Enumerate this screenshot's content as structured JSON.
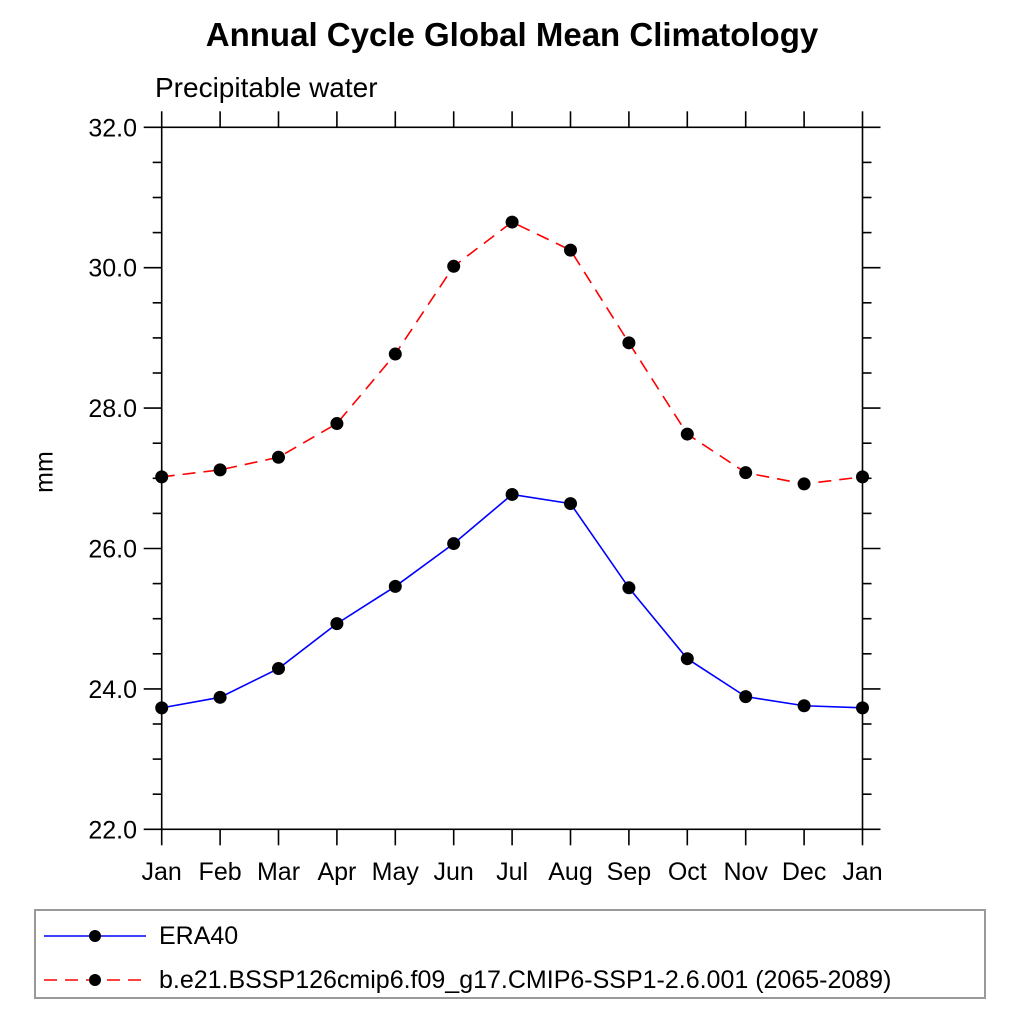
{
  "chart_data": {
    "type": "line",
    "title": "Annual Cycle Global Mean Climatology",
    "left_subtitle": "Precipitable water",
    "ylabel": "mm",
    "xlabel": "",
    "categories": [
      "Jan",
      "Feb",
      "Mar",
      "Apr",
      "May",
      "Jun",
      "Jul",
      "Aug",
      "Sep",
      "Oct",
      "Nov",
      "Dec",
      "Jan"
    ],
    "ylim": [
      22.0,
      32.0
    ],
    "y_major_ticks": [
      22.0,
      24.0,
      26.0,
      28.0,
      30.0,
      32.0
    ],
    "y_tick_labels": [
      "22.0",
      "24.0",
      "26.0",
      "28.0",
      "30.0",
      "32.0"
    ],
    "y_minor_step": 0.5,
    "grid": false,
    "legend_position": "bottom-left box",
    "frame_color": "#000000",
    "marker": "filled-circle",
    "marker_color": "#000000",
    "series": [
      {
        "name": "ERA40",
        "color": "#0000ff",
        "style": "solid",
        "values": [
          23.73,
          23.88,
          24.29,
          24.93,
          25.46,
          26.07,
          26.77,
          26.64,
          25.44,
          24.43,
          23.89,
          23.76,
          23.73
        ]
      },
      {
        "name": "b.e21.BSSP126cmip6.f09_g17.CMIP6-SSP1-2.6.001 (2065-2089)",
        "color": "#ff0000",
        "style": "dashed",
        "values": [
          27.02,
          27.12,
          27.3,
          27.78,
          28.77,
          30.02,
          30.65,
          30.25,
          28.93,
          27.63,
          27.08,
          26.92,
          27.02
        ]
      }
    ]
  }
}
